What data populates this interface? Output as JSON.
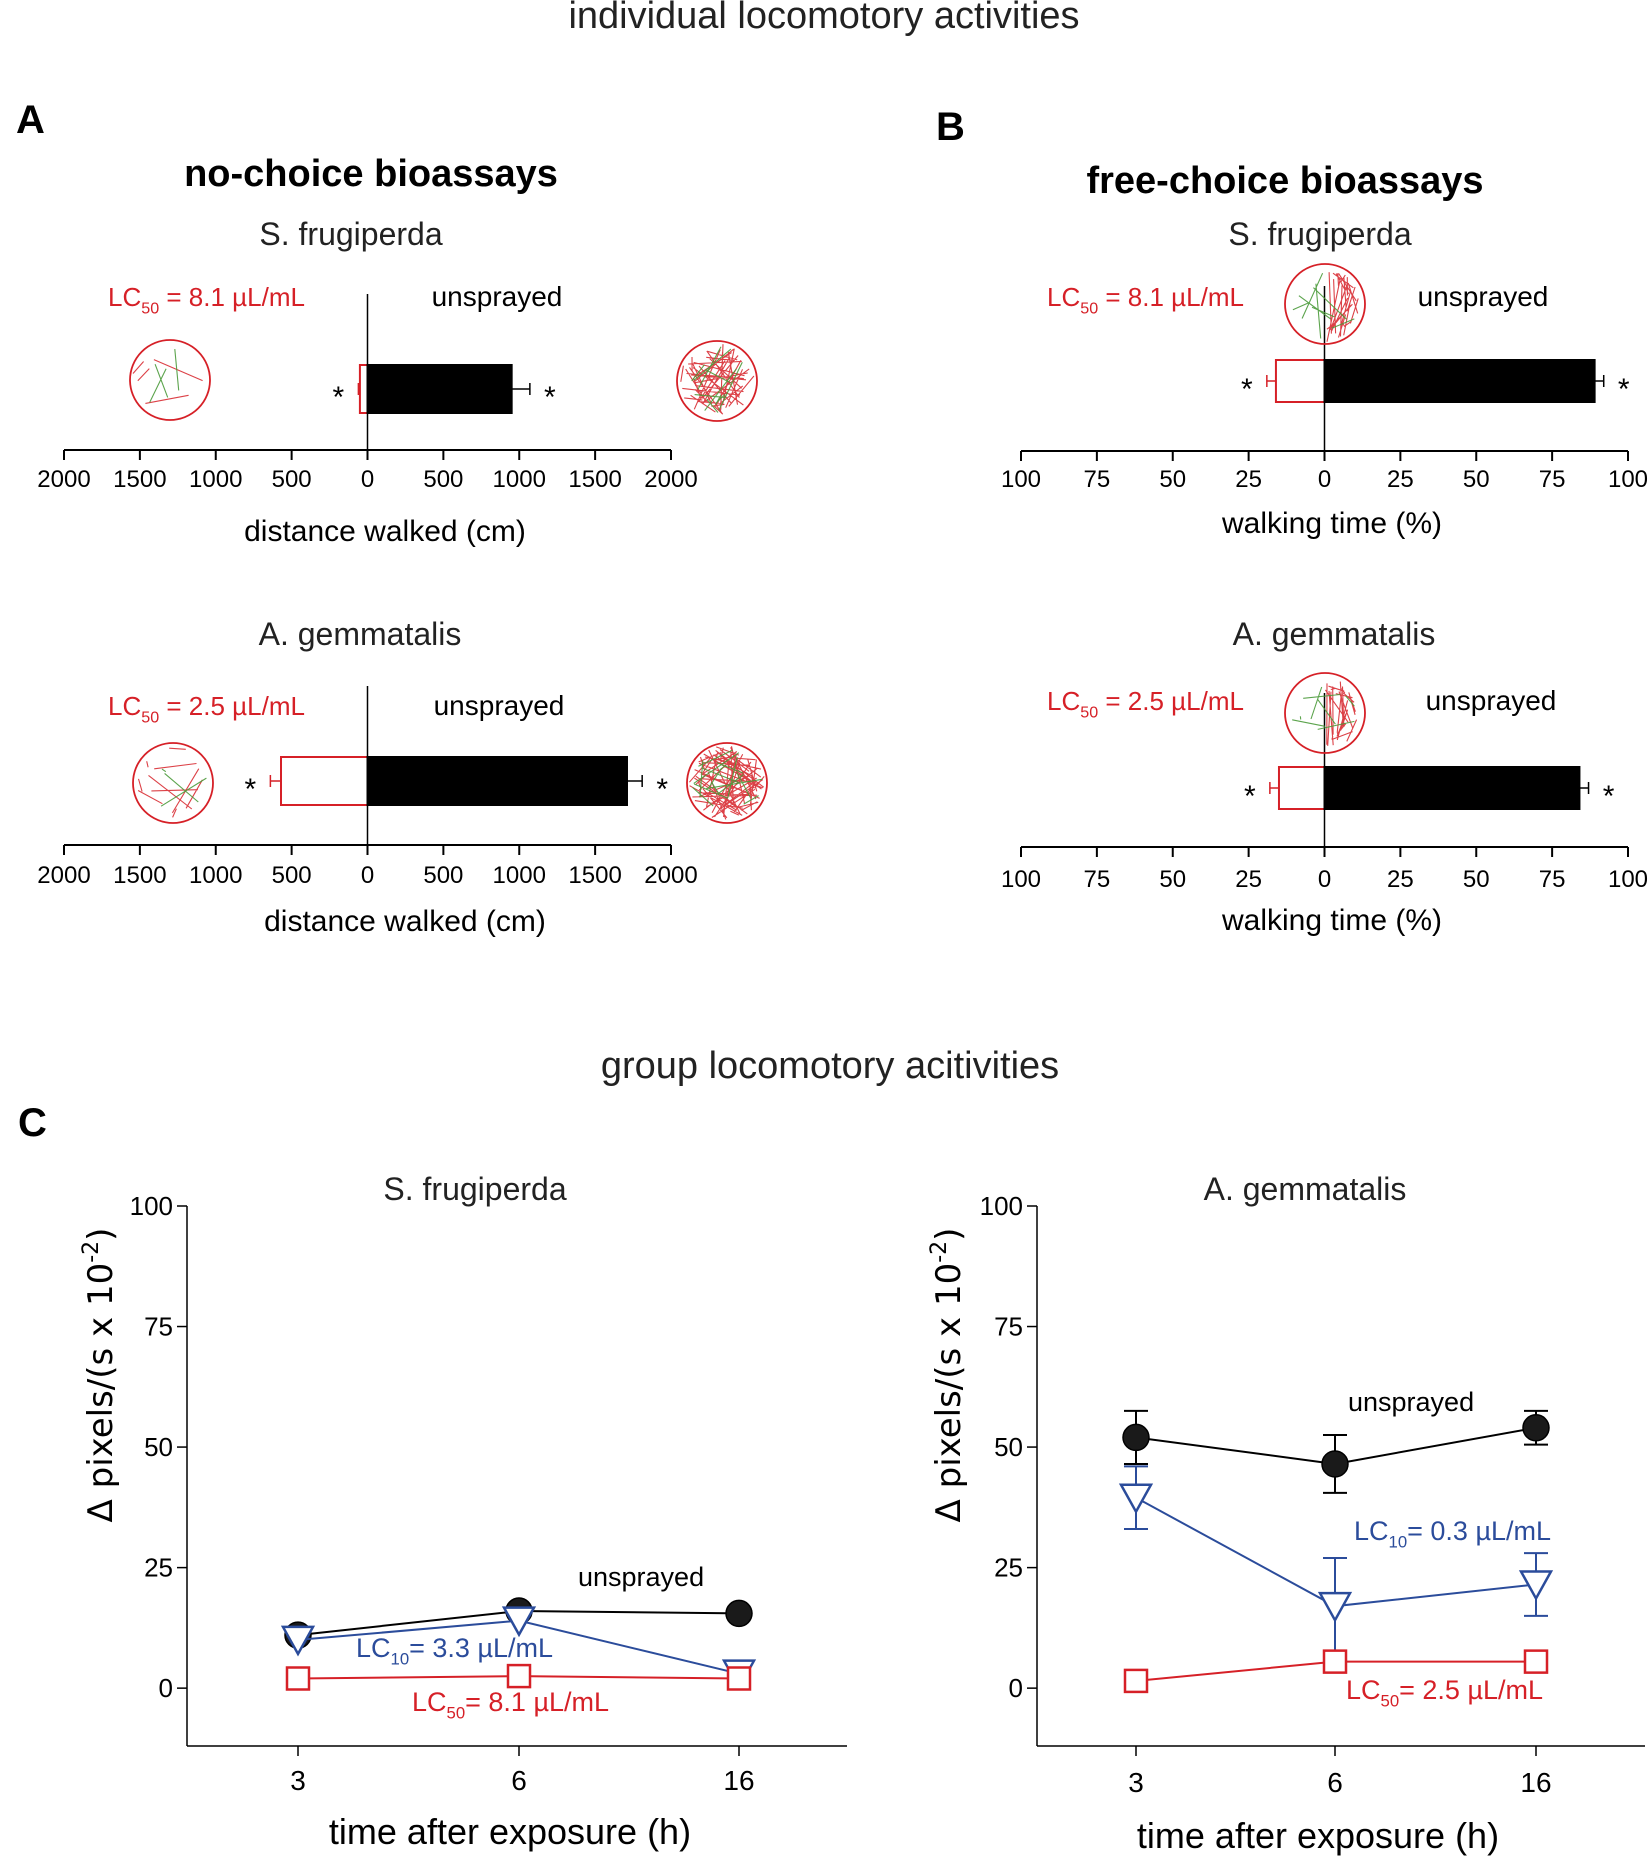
{
  "figure": {
    "section_top_title": "individual locomotory activities",
    "section_bottom_title": "group locomotory acitivities",
    "colors": {
      "unsprayed": "#000000",
      "lc50": "#d62027",
      "lc10": "#2b4c9b",
      "track_green": "#4a9a3a"
    }
  },
  "chart_data": [
    {
      "panel": "A",
      "header": "no-choice bioassays",
      "species": "S. frugiperda",
      "type": "bar",
      "orientation": "horizontal-diverging",
      "left_label": "LC50 = 8.1 µL/mL",
      "left_label_main": "LC",
      "left_label_sub": "50",
      "left_label_rest": " = 8.1 µL/mL",
      "right_label": "unsprayed",
      "series": [
        {
          "name": "LC50 = 8.1 µL/mL",
          "side": "left",
          "value": 50,
          "error": 10,
          "significance": "*"
        },
        {
          "name": "unsprayed",
          "side": "right",
          "value": 950,
          "error": 120,
          "significance": "*"
        }
      ],
      "xlim": [
        -2000,
        2000
      ],
      "xticks": [
        -2000,
        -1500,
        -1000,
        -500,
        0,
        500,
        1000,
        1500,
        2000
      ],
      "xtick_labels": [
        "2000",
        "1500",
        "1000",
        "500",
        "0",
        "500",
        "1000",
        "1500",
        "2000"
      ],
      "xlabel": "distance walked (cm)"
    },
    {
      "panel": "",
      "header": "",
      "species": "A. gemmatalis",
      "type": "bar",
      "orientation": "horizontal-diverging",
      "left_label": "LC50 = 2.5 µL/mL",
      "left_label_main": "LC",
      "left_label_sub": "50",
      "left_label_rest": " = 2.5 µL/mL",
      "right_label": "unsprayed",
      "series": [
        {
          "name": "LC50 = 2.5 µL/mL",
          "side": "left",
          "value": 570,
          "error": 70,
          "significance": "*"
        },
        {
          "name": "unsprayed",
          "side": "right",
          "value": 1710,
          "error": 100,
          "significance": "*"
        }
      ],
      "xlim": [
        -2000,
        2000
      ],
      "xticks": [
        -2000,
        -1500,
        -1000,
        -500,
        0,
        500,
        1000,
        1500,
        2000
      ],
      "xtick_labels": [
        "2000",
        "1500",
        "1000",
        "500",
        "0",
        "500",
        "1000",
        "1500",
        "2000"
      ],
      "xlabel": "distance walked (cm)"
    },
    {
      "panel": "B",
      "header": "free-choice bioassays",
      "species": "S. frugiperda",
      "type": "bar",
      "orientation": "horizontal-diverging",
      "left_label": "LC50 = 8.1 µL/mL",
      "left_label_main": "LC",
      "left_label_sub": "50",
      "left_label_rest": " = 8.1 µL/mL",
      "right_label": "unsprayed",
      "series": [
        {
          "name": "LC50 = 8.1 µL/mL",
          "side": "left",
          "value": 16,
          "error": 3,
          "significance": "*"
        },
        {
          "name": "unsprayed",
          "side": "right",
          "value": 89,
          "error": 3,
          "significance": "*"
        }
      ],
      "xlim": [
        -100,
        100
      ],
      "xticks": [
        -100,
        -75,
        -50,
        -25,
        0,
        25,
        50,
        75,
        100
      ],
      "xtick_labels": [
        "100",
        "75",
        "50",
        "25",
        "0",
        "25",
        "50",
        "75",
        "100"
      ],
      "xlabel": "walking time (%)"
    },
    {
      "panel": "",
      "header": "",
      "species": "A. gemmatalis",
      "type": "bar",
      "orientation": "horizontal-diverging",
      "left_label": "LC50 = 2.5 µL/mL",
      "left_label_main": "LC",
      "left_label_sub": "50",
      "left_label_rest": " = 2.5 µL/mL",
      "right_label": "unsprayed",
      "series": [
        {
          "name": "LC50 = 2.5 µL/mL",
          "side": "left",
          "value": 15,
          "error": 3,
          "significance": "*"
        },
        {
          "name": "unsprayed",
          "side": "right",
          "value": 84,
          "error": 3,
          "significance": "*"
        }
      ],
      "xlim": [
        -100,
        100
      ],
      "xticks": [
        -100,
        -75,
        -50,
        -25,
        0,
        25,
        50,
        75,
        100
      ],
      "xtick_labels": [
        "100",
        "75",
        "50",
        "25",
        "0",
        "25",
        "50",
        "75",
        "100"
      ],
      "xlabel": "walking time (%)"
    },
    {
      "panel": "C",
      "species": "S. frugiperda",
      "type": "line",
      "categories": [
        "3",
        "6",
        "16"
      ],
      "ylim": [
        -12,
        100
      ],
      "yticks": [
        0,
        25,
        50,
        75,
        100
      ],
      "xlabel": "time after exposure (h)",
      "ylabel": "Δ pixels/(s x 10",
      "ylabel_sup": "-2",
      "ylabel_close": ")",
      "series": [
        {
          "name": "unsprayed",
          "label_main": "unsprayed",
          "label_sub": "",
          "label_rest": "",
          "marker": "circle",
          "values": [
            11,
            16,
            15.5
          ],
          "errors": [
            0,
            0,
            0
          ]
        },
        {
          "name": "LC10 = 3.3 µL/mL",
          "label_main": "LC",
          "label_sub": "10",
          "label_rest": "= 3.3 µL/mL",
          "marker": "triangle-down",
          "values": [
            10,
            14,
            3
          ],
          "errors": [
            0,
            0,
            0
          ]
        },
        {
          "name": "LC50 = 8.1 µL/mL",
          "label_main": "LC",
          "label_sub": "50",
          "label_rest": "= 8.1 µL/mL",
          "marker": "square",
          "values": [
            2,
            2.5,
            2
          ],
          "errors": [
            0,
            0,
            0
          ]
        }
      ]
    },
    {
      "panel": "",
      "species": "A. gemmatalis",
      "type": "line",
      "categories": [
        "3",
        "6",
        "16"
      ],
      "ylim": [
        -12,
        100
      ],
      "yticks": [
        0,
        25,
        50,
        75,
        100
      ],
      "xlabel": "time after exposure (h)",
      "ylabel": "Δ pixels/(s x 10",
      "ylabel_sup": "-2",
      "ylabel_close": ")",
      "series": [
        {
          "name": "unsprayed",
          "label_main": "unsprayed",
          "label_sub": "",
          "label_rest": "",
          "marker": "circle",
          "values": [
            52,
            46.5,
            54
          ],
          "errors": [
            5.5,
            6,
            3.5
          ]
        },
        {
          "name": "LC10 = 0.3 µL/mL",
          "label_main": "LC",
          "label_sub": "10",
          "label_rest": "= 0.3 µL/mL",
          "marker": "triangle-down",
          "values": [
            39.5,
            17,
            21.5
          ],
          "errors": [
            6.5,
            10,
            6.5
          ]
        },
        {
          "name": "LC50 = 2.5 µL/mL",
          "label_main": "LC",
          "label_sub": "50",
          "label_rest": "= 2.5 µL/mL",
          "marker": "square",
          "values": [
            1.5,
            5.5,
            5.5
          ],
          "errors": [
            0,
            0,
            0
          ]
        }
      ]
    }
  ]
}
